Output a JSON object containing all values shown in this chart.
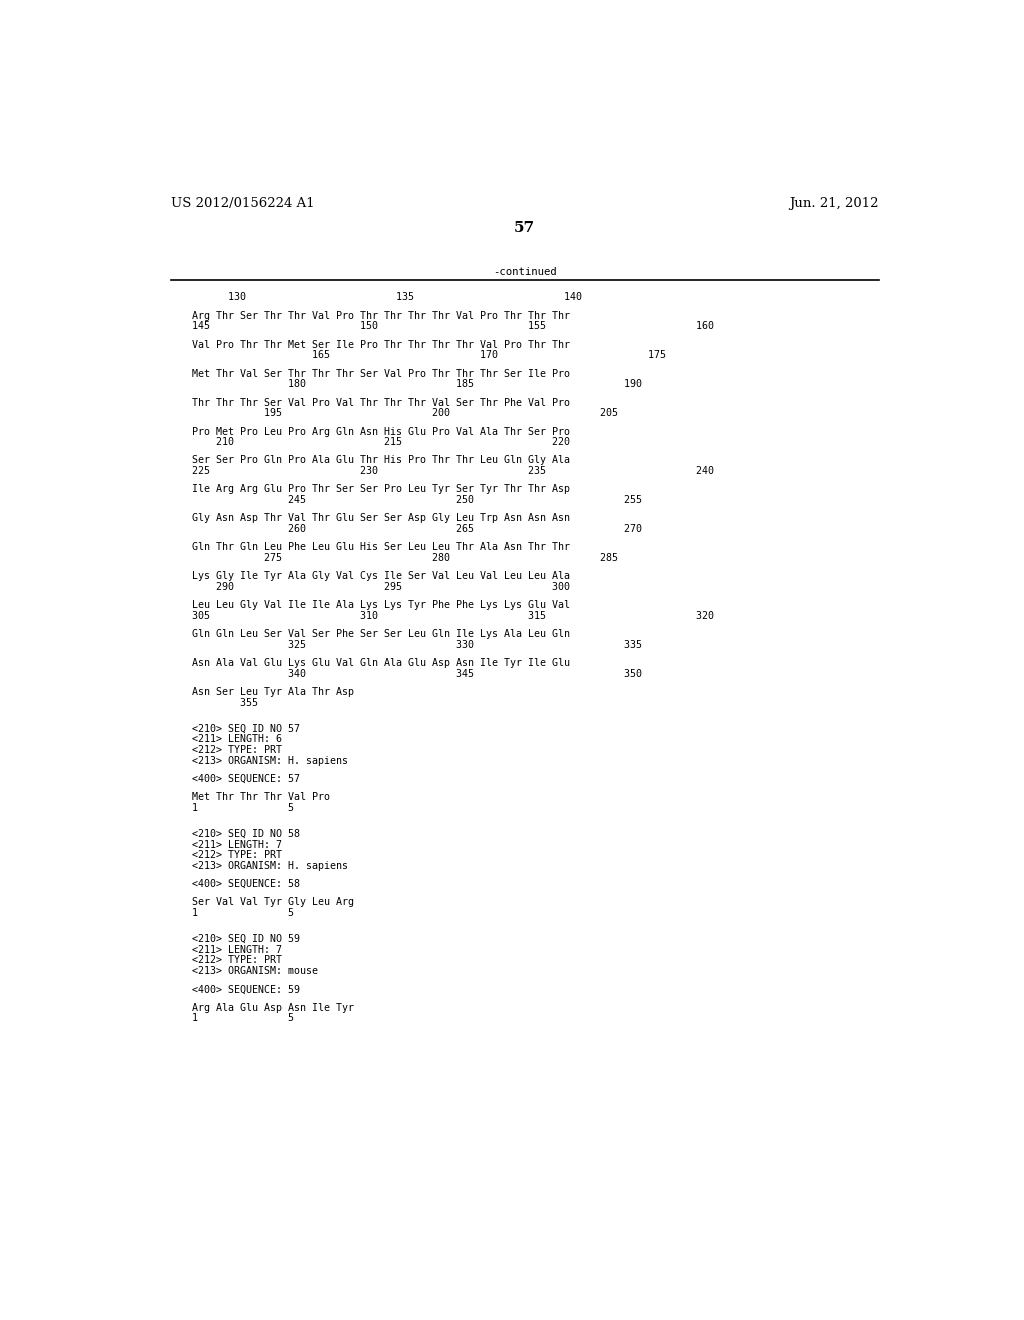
{
  "header_left": "US 2012/0156224 A1",
  "header_right": "Jun. 21, 2012",
  "page_number": "57",
  "continued_label": "-continued",
  "background_color": "#ffffff",
  "text_color": "#000000",
  "mono_font_size": 7.2,
  "header_font_size": 9.5,
  "page_num_font_size": 11,
  "content_lines": [
    {
      "type": "numbering",
      "text": "      130                         135                         140"
    },
    {
      "type": "blank"
    },
    {
      "type": "sequence",
      "text": "Arg Thr Ser Thr Thr Val Pro Thr Thr Thr Thr Val Pro Thr Thr Thr"
    },
    {
      "type": "numbering",
      "text": "145                         150                         155                         160"
    },
    {
      "type": "blank"
    },
    {
      "type": "sequence",
      "text": "Val Pro Thr Thr Met Ser Ile Pro Thr Thr Thr Thr Val Pro Thr Thr"
    },
    {
      "type": "numbering",
      "text": "                    165                         170                         175"
    },
    {
      "type": "blank"
    },
    {
      "type": "sequence",
      "text": "Met Thr Val Ser Thr Thr Thr Ser Val Pro Thr Thr Thr Ser Ile Pro"
    },
    {
      "type": "numbering",
      "text": "                180                         185                         190"
    },
    {
      "type": "blank"
    },
    {
      "type": "sequence",
      "text": "Thr Thr Thr Ser Val Pro Val Thr Thr Thr Val Ser Thr Phe Val Pro"
    },
    {
      "type": "numbering",
      "text": "            195                         200                         205"
    },
    {
      "type": "blank"
    },
    {
      "type": "sequence",
      "text": "Pro Met Pro Leu Pro Arg Gln Asn His Glu Pro Val Ala Thr Ser Pro"
    },
    {
      "type": "numbering",
      "text": "    210                         215                         220"
    },
    {
      "type": "blank"
    },
    {
      "type": "sequence",
      "text": "Ser Ser Pro Gln Pro Ala Glu Thr His Pro Thr Thr Leu Gln Gly Ala"
    },
    {
      "type": "numbering",
      "text": "225                         230                         235                         240"
    },
    {
      "type": "blank"
    },
    {
      "type": "sequence",
      "text": "Ile Arg Arg Glu Pro Thr Ser Ser Pro Leu Tyr Ser Tyr Thr Thr Asp"
    },
    {
      "type": "numbering",
      "text": "                245                         250                         255"
    },
    {
      "type": "blank"
    },
    {
      "type": "sequence",
      "text": "Gly Asn Asp Thr Val Thr Glu Ser Ser Asp Gly Leu Trp Asn Asn Asn"
    },
    {
      "type": "numbering",
      "text": "                260                         265                         270"
    },
    {
      "type": "blank"
    },
    {
      "type": "sequence",
      "text": "Gln Thr Gln Leu Phe Leu Glu His Ser Leu Leu Thr Ala Asn Thr Thr"
    },
    {
      "type": "numbering",
      "text": "            275                         280                         285"
    },
    {
      "type": "blank"
    },
    {
      "type": "sequence",
      "text": "Lys Gly Ile Tyr Ala Gly Val Cys Ile Ser Val Leu Val Leu Leu Ala"
    },
    {
      "type": "numbering",
      "text": "    290                         295                         300"
    },
    {
      "type": "blank"
    },
    {
      "type": "sequence",
      "text": "Leu Leu Gly Val Ile Ile Ala Lys Lys Tyr Phe Phe Lys Lys Glu Val"
    },
    {
      "type": "numbering",
      "text": "305                         310                         315                         320"
    },
    {
      "type": "blank"
    },
    {
      "type": "sequence",
      "text": "Gln Gln Leu Ser Val Ser Phe Ser Ser Leu Gln Ile Lys Ala Leu Gln"
    },
    {
      "type": "numbering",
      "text": "                325                         330                         335"
    },
    {
      "type": "blank"
    },
    {
      "type": "sequence",
      "text": "Asn Ala Val Glu Lys Glu Val Gln Ala Glu Asp Asn Ile Tyr Ile Glu"
    },
    {
      "type": "numbering",
      "text": "                340                         345                         350"
    },
    {
      "type": "blank"
    },
    {
      "type": "sequence",
      "text": "Asn Ser Leu Tyr Ala Thr Asp"
    },
    {
      "type": "numbering",
      "text": "        355"
    },
    {
      "type": "blank"
    },
    {
      "type": "blank"
    },
    {
      "type": "meta",
      "text": "<210> SEQ ID NO 57"
    },
    {
      "type": "meta",
      "text": "<211> LENGTH: 6"
    },
    {
      "type": "meta",
      "text": "<212> TYPE: PRT"
    },
    {
      "type": "meta",
      "text": "<213> ORGANISM: H. sapiens"
    },
    {
      "type": "blank"
    },
    {
      "type": "meta",
      "text": "<400> SEQUENCE: 57"
    },
    {
      "type": "blank"
    },
    {
      "type": "sequence",
      "text": "Met Thr Thr Thr Val Pro"
    },
    {
      "type": "numbering",
      "text": "1               5"
    },
    {
      "type": "blank"
    },
    {
      "type": "blank"
    },
    {
      "type": "meta",
      "text": "<210> SEQ ID NO 58"
    },
    {
      "type": "meta",
      "text": "<211> LENGTH: 7"
    },
    {
      "type": "meta",
      "text": "<212> TYPE: PRT"
    },
    {
      "type": "meta",
      "text": "<213> ORGANISM: H. sapiens"
    },
    {
      "type": "blank"
    },
    {
      "type": "meta",
      "text": "<400> SEQUENCE: 58"
    },
    {
      "type": "blank"
    },
    {
      "type": "sequence",
      "text": "Ser Val Val Tyr Gly Leu Arg"
    },
    {
      "type": "numbering",
      "text": "1               5"
    },
    {
      "type": "blank"
    },
    {
      "type": "blank"
    },
    {
      "type": "meta",
      "text": "<210> SEQ ID NO 59"
    },
    {
      "type": "meta",
      "text": "<211> LENGTH: 7"
    },
    {
      "type": "meta",
      "text": "<212> TYPE: PRT"
    },
    {
      "type": "meta",
      "text": "<213> ORGANISM: mouse"
    },
    {
      "type": "blank"
    },
    {
      "type": "meta",
      "text": "<400> SEQUENCE: 59"
    },
    {
      "type": "blank"
    },
    {
      "type": "sequence",
      "text": "Arg Ala Glu Asp Asn Ile Tyr"
    },
    {
      "type": "numbering",
      "text": "1               5"
    }
  ]
}
